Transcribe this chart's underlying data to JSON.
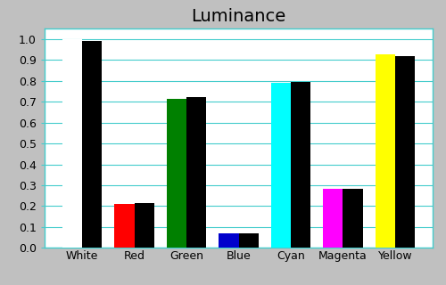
{
  "title": "Luminance",
  "categories": [
    "White",
    "Red",
    "Green",
    "Blue",
    "Cyan",
    "Magenta",
    "Yellow"
  ],
  "target_values": [
    1.0,
    0.21,
    0.715,
    0.07,
    0.79,
    0.285,
    0.925
  ],
  "measured_values": [
    0.99,
    0.215,
    0.72,
    0.072,
    0.795,
    0.285,
    0.92
  ],
  "target_colors": [
    "#ffffff",
    "#ff0000",
    "#008000",
    "#0000cc",
    "#00ffff",
    "#ff00ff",
    "#ffff00"
  ],
  "measured_color": "#000000",
  "background_color": "#c0c0c0",
  "plot_background_color": "#ffffff",
  "grid_color": "#44cccc",
  "ylim": [
    0.0,
    1.05
  ],
  "yticks": [
    0.0,
    0.1,
    0.2,
    0.3,
    0.4,
    0.5,
    0.6,
    0.7,
    0.8,
    0.9,
    1.0
  ],
  "title_fontsize": 14,
  "tick_fontsize": 9,
  "bar_width": 0.38
}
